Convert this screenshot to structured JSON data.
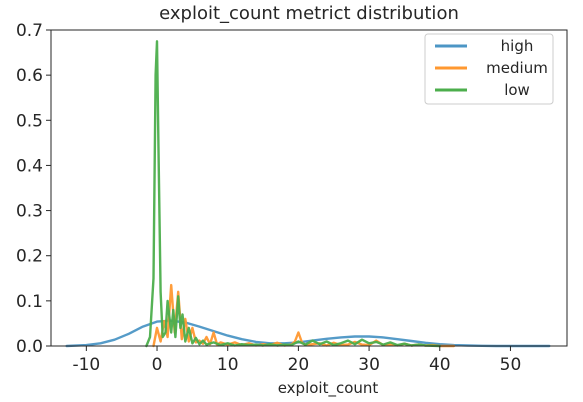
{
  "chart_data": {
    "type": "line",
    "title": "exploit_count metrict distribution",
    "xlabel": "exploit_count",
    "ylabel": "",
    "xlim": [
      -15,
      58
    ],
    "ylim": [
      0,
      0.7
    ],
    "xticks": [
      -10,
      0,
      10,
      20,
      30,
      40,
      50
    ],
    "xtick_labels": [
      "-10",
      "0",
      "10",
      "20",
      "30",
      "40",
      "50"
    ],
    "yticks": [
      0.0,
      0.1,
      0.2,
      0.3,
      0.4,
      0.5,
      0.6,
      0.7
    ],
    "ytick_labels": [
      "0.0",
      "0.1",
      "0.2",
      "0.3",
      "0.4",
      "0.5",
      "0.6",
      "0.7"
    ],
    "grid": false,
    "legend_position": "top-right",
    "series": [
      {
        "name": "high",
        "color": "#4c96c5",
        "x": [
          -12.8,
          -10,
          -8,
          -6,
          -4,
          -2,
          0,
          2,
          4,
          6,
          8,
          10,
          12,
          14,
          16,
          18,
          20,
          22,
          24,
          26,
          28,
          30,
          32,
          34,
          36,
          38,
          40,
          42,
          44,
          46,
          48,
          50,
          52,
          55.5
        ],
        "y": [
          0.0,
          0.002,
          0.006,
          0.014,
          0.027,
          0.043,
          0.054,
          0.056,
          0.052,
          0.043,
          0.033,
          0.023,
          0.015,
          0.009,
          0.006,
          0.006,
          0.008,
          0.012,
          0.016,
          0.019,
          0.021,
          0.021,
          0.019,
          0.015,
          0.011,
          0.007,
          0.004,
          0.002,
          0.001,
          0.0004,
          0.0001,
          0.0,
          0.0,
          0.0
        ]
      },
      {
        "name": "medium",
        "color": "#ff9830",
        "x": [
          -0.5,
          0,
          0.5,
          1,
          1.5,
          2,
          2.5,
          3,
          3.5,
          4,
          4.5,
          5,
          5.5,
          6,
          6.5,
          7,
          7.5,
          8,
          8.5,
          9,
          10,
          11,
          12,
          13,
          14,
          15,
          16,
          17,
          18,
          19,
          19.5,
          20,
          20.5,
          21,
          22,
          23,
          24,
          25,
          26,
          27,
          28,
          29,
          30,
          31,
          32,
          33,
          34,
          35,
          36,
          37,
          38,
          39,
          40,
          42
        ],
        "y": [
          0.0,
          0.04,
          0.01,
          0.055,
          0.02,
          0.135,
          0.03,
          0.12,
          0.015,
          0.06,
          0.01,
          0.04,
          0.008,
          0.012,
          0.005,
          0.02,
          0.004,
          0.03,
          0.003,
          0.008,
          0.003,
          0.008,
          0.002,
          0.006,
          0.001,
          0.004,
          0.002,
          0.007,
          0.001,
          0.003,
          0.01,
          0.03,
          0.008,
          0.002,
          0.004,
          0.006,
          0.001,
          0.007,
          0.002,
          0.003,
          0.009,
          0.003,
          0.002,
          0.012,
          0.002,
          0.004,
          0.001,
          0.005,
          0.001,
          0.003,
          0.001,
          0.002,
          0.0,
          0.0
        ]
      },
      {
        "name": "low",
        "color": "#4cae4c",
        "x": [
          -1.5,
          -1,
          -0.5,
          -0.2,
          0,
          0.2,
          0.5,
          0.8,
          1.2,
          1.5,
          2,
          2.3,
          2.6,
          3,
          3.3,
          3.6,
          4,
          4.5,
          5,
          5.5,
          6,
          6.5,
          7,
          8,
          9,
          10,
          11,
          12,
          13,
          14,
          15,
          16,
          17,
          18,
          19,
          20,
          21,
          22,
          23,
          24,
          25,
          26,
          27,
          28,
          29,
          30,
          31,
          32,
          33,
          34,
          35,
          36,
          37,
          38,
          40
        ],
        "y": [
          0.0,
          0.02,
          0.15,
          0.6,
          0.675,
          0.45,
          0.12,
          0.02,
          0.03,
          0.1,
          0.03,
          0.08,
          0.02,
          0.11,
          0.04,
          0.07,
          0.01,
          0.04,
          0.006,
          0.018,
          0.004,
          0.012,
          0.003,
          0.008,
          0.002,
          0.006,
          0.001,
          0.004,
          0.002,
          0.003,
          0.001,
          0.004,
          0.001,
          0.003,
          0.002,
          0.01,
          0.003,
          0.012,
          0.004,
          0.01,
          0.002,
          0.006,
          0.012,
          0.004,
          0.014,
          0.006,
          0.009,
          0.003,
          0.008,
          0.002,
          0.005,
          0.001,
          0.003,
          0.001,
          0.0
        ]
      }
    ]
  }
}
